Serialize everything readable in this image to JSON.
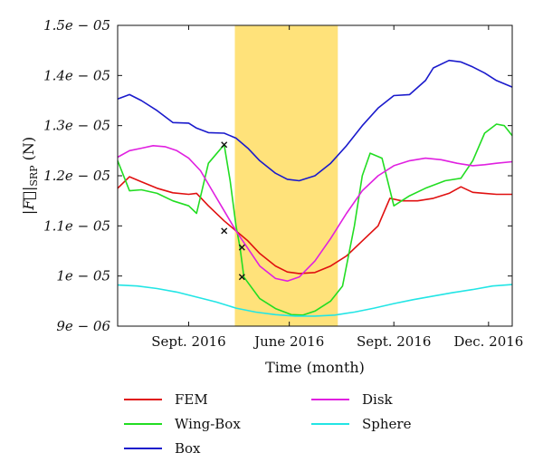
{
  "chart_data": {
    "type": "line",
    "title": "",
    "xlabel": "Time (month)",
    "ylabel": "|F|_SRP (N)",
    "ylabel_parts": {
      "bar": "|",
      "vec": "F",
      "sub": "SRP",
      "unit": "(N)"
    },
    "x_tick_labels": [
      {
        "x": 0.18,
        "label": "Sept. 2016"
      },
      {
        "x": 0.435,
        "label": "June 2016"
      },
      {
        "x": 0.7,
        "label": "Sept. 2016"
      },
      {
        "x": 0.94,
        "label": "Dec. 2016"
      }
    ],
    "xlim": [
      0,
      1
    ],
    "ylim": [
      9e-06,
      1.5e-05
    ],
    "y_ticks": [
      {
        "value": 9e-06,
        "label": "9e − 06"
      },
      {
        "value": 1e-05,
        "label": "1e − 05"
      },
      {
        "value": 1.1e-05,
        "label": "1.1e − 05"
      },
      {
        "value": 1.2e-05,
        "label": "1.2e − 05"
      },
      {
        "value": 1.3e-05,
        "label": "1.3e − 05"
      },
      {
        "value": 1.4e-05,
        "label": "1.4e − 05"
      },
      {
        "value": 1.5e-05,
        "label": "1.5e − 05"
      }
    ],
    "shaded_band": {
      "x0": 0.297,
      "x1": 0.558,
      "color": "#ffe27a"
    },
    "grid": false,
    "legend_position": "bottom",
    "series": [
      {
        "name": "FEM",
        "color": "#e01010",
        "x": [
          0,
          0.03,
          0.06,
          0.1,
          0.14,
          0.18,
          0.2,
          0.23,
          0.27,
          0.3,
          0.33,
          0.36,
          0.4,
          0.43,
          0.46,
          0.5,
          0.54,
          0.58,
          0.62,
          0.66,
          0.69,
          0.72,
          0.76,
          0.8,
          0.84,
          0.87,
          0.9,
          0.93,
          0.96,
          1.0
        ],
        "y": [
          1.175e-05,
          1.198e-05,
          1.188e-05,
          1.175e-05,
          1.166e-05,
          1.163e-05,
          1.165e-05,
          1.14e-05,
          1.11e-05,
          1.09e-05,
          1.07e-05,
          1.045e-05,
          1.02e-05,
          1.008e-05,
          1.005e-05,
          1.007e-05,
          1.02e-05,
          1.04e-05,
          1.07e-05,
          1.1e-05,
          1.155e-05,
          1.15e-05,
          1.15e-05,
          1.155e-05,
          1.165e-05,
          1.178e-05,
          1.167e-05,
          1.165e-05,
          1.163e-05,
          1.163e-05
        ]
      },
      {
        "name": "Wing-Box",
        "color": "#22dd22",
        "x": [
          0,
          0.03,
          0.06,
          0.1,
          0.14,
          0.18,
          0.2,
          0.23,
          0.27,
          0.285,
          0.3,
          0.31,
          0.32,
          0.36,
          0.4,
          0.44,
          0.47,
          0.5,
          0.54,
          0.57,
          0.6,
          0.62,
          0.64,
          0.67,
          0.7,
          0.74,
          0.78,
          0.83,
          0.87,
          0.9,
          0.93,
          0.96,
          0.98,
          1.0
        ],
        "y": [
          1.23e-05,
          1.17e-05,
          1.172e-05,
          1.165e-05,
          1.15e-05,
          1.14e-05,
          1.125e-05,
          1.225e-05,
          1.262e-05,
          1.19e-05,
          1.1e-05,
          1.057e-05,
          9.98e-06,
          9.55e-06,
          9.35e-06,
          9.23e-06,
          9.22e-06,
          9.3e-06,
          9.5e-06,
          9.8e-06,
          1.1e-05,
          1.2e-05,
          1.245e-05,
          1.235e-05,
          1.14e-05,
          1.16e-05,
          1.175e-05,
          1.19e-05,
          1.195e-05,
          1.23e-05,
          1.285e-05,
          1.303e-05,
          1.3e-05,
          1.28e-05
        ]
      },
      {
        "name": "Box",
        "color": "#1a1acc",
        "x": [
          0,
          0.03,
          0.06,
          0.1,
          0.14,
          0.18,
          0.2,
          0.23,
          0.27,
          0.3,
          0.33,
          0.36,
          0.4,
          0.43,
          0.46,
          0.5,
          0.54,
          0.58,
          0.62,
          0.66,
          0.7,
          0.74,
          0.78,
          0.8,
          0.84,
          0.87,
          0.9,
          0.93,
          0.96,
          1.0
        ],
        "y": [
          1.353e-05,
          1.362e-05,
          1.35e-05,
          1.33e-05,
          1.306e-05,
          1.305e-05,
          1.295e-05,
          1.286e-05,
          1.285e-05,
          1.275e-05,
          1.255e-05,
          1.23e-05,
          1.205e-05,
          1.193e-05,
          1.19e-05,
          1.2e-05,
          1.225e-05,
          1.26e-05,
          1.3e-05,
          1.335e-05,
          1.36e-05,
          1.362e-05,
          1.39e-05,
          1.415e-05,
          1.43e-05,
          1.427e-05,
          1.417e-05,
          1.405e-05,
          1.39e-05,
          1.377e-05
        ]
      },
      {
        "name": "Disk",
        "color": "#e020e0",
        "x": [
          0,
          0.03,
          0.06,
          0.09,
          0.12,
          0.15,
          0.18,
          0.21,
          0.24,
          0.27,
          0.3,
          0.33,
          0.36,
          0.4,
          0.43,
          0.46,
          0.5,
          0.54,
          0.58,
          0.62,
          0.66,
          0.7,
          0.74,
          0.78,
          0.82,
          0.86,
          0.9,
          0.93,
          0.96,
          1.0
        ],
        "y": [
          1.237e-05,
          1.25e-05,
          1.255e-05,
          1.26e-05,
          1.258e-05,
          1.25e-05,
          1.235e-05,
          1.21e-05,
          1.17e-05,
          1.13e-05,
          1.09e-05,
          1.055e-05,
          1.02e-05,
          9.95e-06,
          9.9e-06,
          9.98e-06,
          1.03e-05,
          1.075e-05,
          1.125e-05,
          1.17e-05,
          1.2e-05,
          1.22e-05,
          1.23e-05,
          1.235e-05,
          1.232e-05,
          1.225e-05,
          1.22e-05,
          1.222e-05,
          1.225e-05,
          1.228e-05
        ]
      },
      {
        "name": "Sphere",
        "color": "#22e5e5",
        "x": [
          0,
          0.05,
          0.1,
          0.15,
          0.2,
          0.25,
          0.3,
          0.35,
          0.4,
          0.45,
          0.5,
          0.55,
          0.6,
          0.65,
          0.7,
          0.75,
          0.8,
          0.85,
          0.9,
          0.95,
          1.0
        ],
        "y": [
          9.82e-06,
          9.8e-06,
          9.75e-06,
          9.68e-06,
          9.58e-06,
          9.48e-06,
          9.36e-06,
          9.28e-06,
          9.23e-06,
          9.2e-06,
          9.2e-06,
          9.22e-06,
          9.28e-06,
          9.36e-06,
          9.45e-06,
          9.53e-06,
          9.6e-06,
          9.67e-06,
          9.73e-06,
          9.8e-06,
          9.83e-06
        ]
      }
    ],
    "markers": [
      {
        "x": 0.27,
        "y": 1.262e-05,
        "symbol": "x"
      },
      {
        "x": 0.27,
        "y": 1.09e-05,
        "symbol": "x"
      },
      {
        "x": 0.315,
        "y": 1.057e-05,
        "symbol": "x"
      },
      {
        "x": 0.315,
        "y": 9.98e-06,
        "symbol": "x"
      }
    ]
  },
  "legend": {
    "items": [
      {
        "label": "FEM",
        "color": "#e01010"
      },
      {
        "label": "Disk",
        "color": "#e020e0"
      },
      {
        "label": "Wing-Box",
        "color": "#22dd22"
      },
      {
        "label": "Sphere",
        "color": "#22e5e5"
      },
      {
        "label": "Box",
        "color": "#1a1acc"
      }
    ]
  }
}
